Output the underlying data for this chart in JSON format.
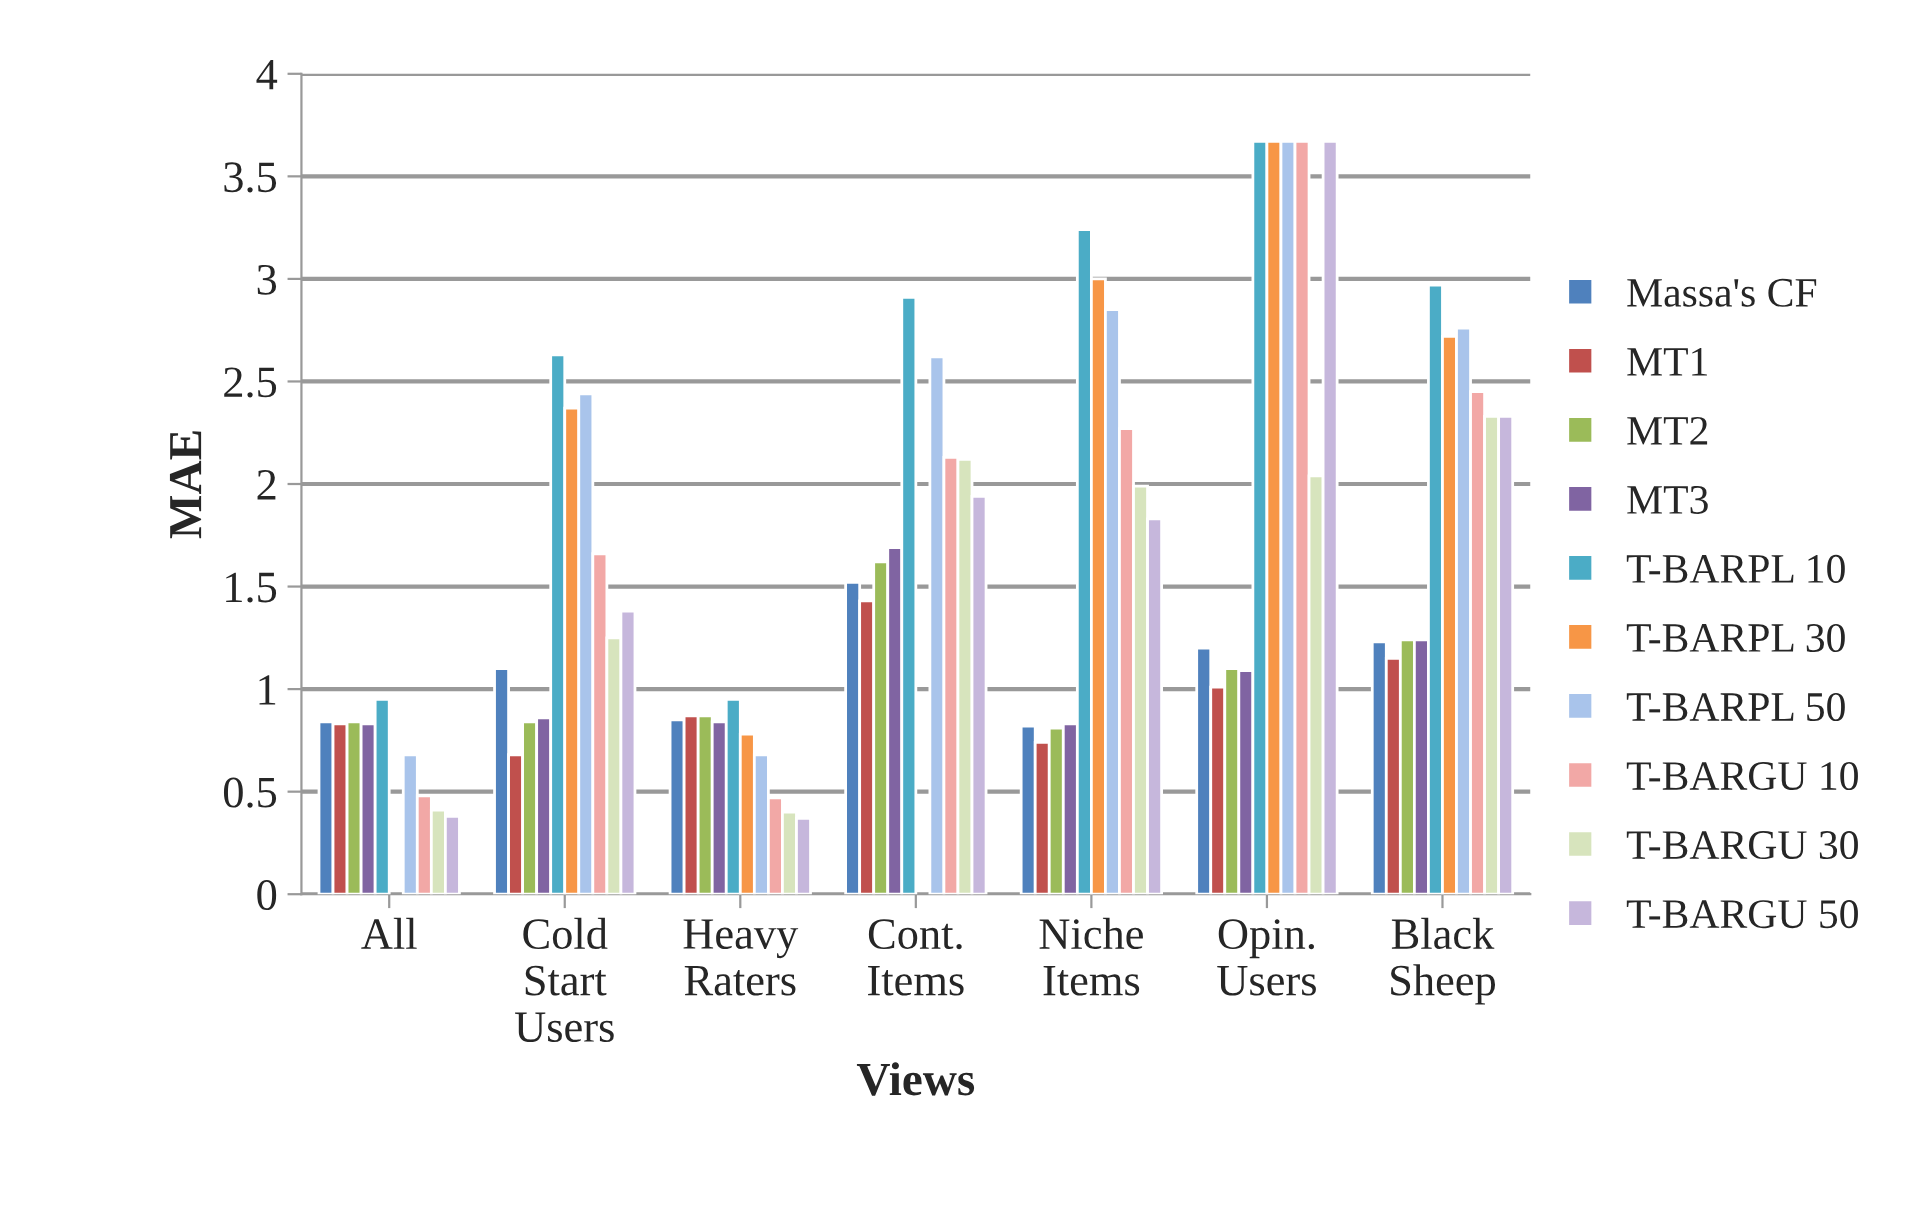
{
  "chart_data": {
    "type": "bar",
    "xlabel": "Views",
    "ylabel": "MAE",
    "categories": [
      "All",
      "Cold\nStart\nUsers",
      "Heavy\nRaters",
      "Cont.\nItems",
      "Niche\nItems",
      "Opin.\nUsers",
      "Black\nSheep"
    ],
    "series": [
      {
        "name": "Massa's CF",
        "color": "#4f81bd",
        "values": [
          0.84,
          1.1,
          0.85,
          1.52,
          0.82,
          1.2,
          1.23
        ]
      },
      {
        "name": "MT1",
        "color": "#c0504d",
        "values": [
          0.83,
          0.68,
          0.87,
          1.43,
          0.74,
          1.01,
          1.15
        ]
      },
      {
        "name": "MT2",
        "color": "#9bbb59",
        "values": [
          0.84,
          0.84,
          0.87,
          1.62,
          0.81,
          1.1,
          1.24
        ]
      },
      {
        "name": "MT3",
        "color": "#8064a2",
        "values": [
          0.83,
          0.86,
          0.84,
          1.69,
          0.83,
          1.09,
          1.24
        ]
      },
      {
        "name": "T-BARPL 10",
        "color": "#4bacc6",
        "values": [
          0.95,
          2.63,
          0.95,
          2.91,
          3.24,
          3.67,
          2.97
        ]
      },
      {
        "name": "T-BARPL 30",
        "color": "#f79646",
        "values": [
          null,
          2.37,
          0.78,
          null,
          3.0,
          3.67,
          2.72
        ]
      },
      {
        "name": "T-BARPL 50",
        "color": "#a9c4eb",
        "values": [
          0.68,
          2.44,
          0.68,
          2.62,
          2.85,
          3.67,
          2.76
        ]
      },
      {
        "name": "T-BARGU 10",
        "color": "#f2a8a6",
        "values": [
          0.48,
          1.66,
          0.47,
          2.13,
          2.27,
          3.67,
          2.45
        ]
      },
      {
        "name": "T-BARGU 30",
        "color": "#d7e4bd",
        "values": [
          0.41,
          1.25,
          0.4,
          2.12,
          1.99,
          2.04,
          2.33
        ]
      },
      {
        "name": "T-BARGU 50",
        "color": "#c6b7dc",
        "values": [
          0.38,
          1.38,
          0.37,
          1.94,
          1.83,
          3.67,
          2.33
        ]
      }
    ],
    "ylim": [
      0,
      4
    ],
    "yticks": [
      0,
      0.5,
      1,
      1.5,
      2,
      2.5,
      3,
      3.5,
      4
    ],
    "grid": "y",
    "legend": "right"
  }
}
